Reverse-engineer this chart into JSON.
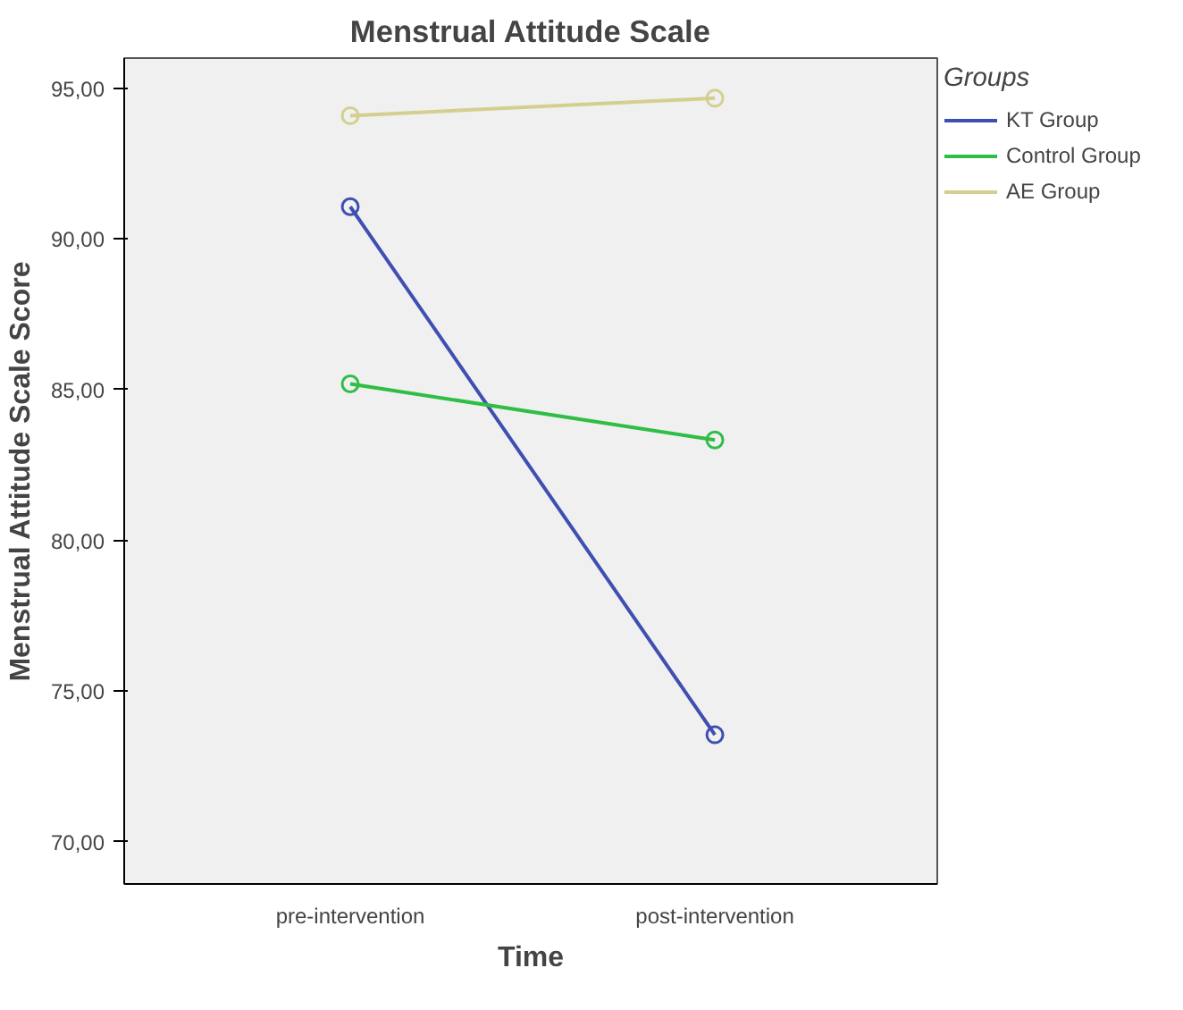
{
  "chart_data": {
    "type": "line",
    "title": "Menstrual Attitude Scale",
    "xlabel": "Time",
    "ylabel": "Menstrual Attitude Scale Score",
    "legend_title": "Groups",
    "legend": "right",
    "marker": "circle",
    "grid": false,
    "categories": [
      "pre-intervention",
      "post-intervention"
    ],
    "ylim": [
      68.6,
      96.0
    ],
    "yticks": [
      {
        "value": 70,
        "label": "70,00"
      },
      {
        "value": 75,
        "label": "75,00"
      },
      {
        "value": 80,
        "label": "80,00"
      },
      {
        "value": 85,
        "label": "85,00"
      },
      {
        "value": 90,
        "label": "90,00"
      },
      {
        "value": 95,
        "label": "95,00"
      }
    ],
    "series": [
      {
        "name": "KT Group",
        "color": "#3e4fb1",
        "values": [
          91.07,
          73.55
        ]
      },
      {
        "name": "Control Group",
        "color": "#2fbe45",
        "values": [
          85.19,
          83.33
        ]
      },
      {
        "name": "AE Group",
        "color": "#d4cf8f",
        "values": [
          94.09,
          94.67
        ]
      }
    ]
  }
}
